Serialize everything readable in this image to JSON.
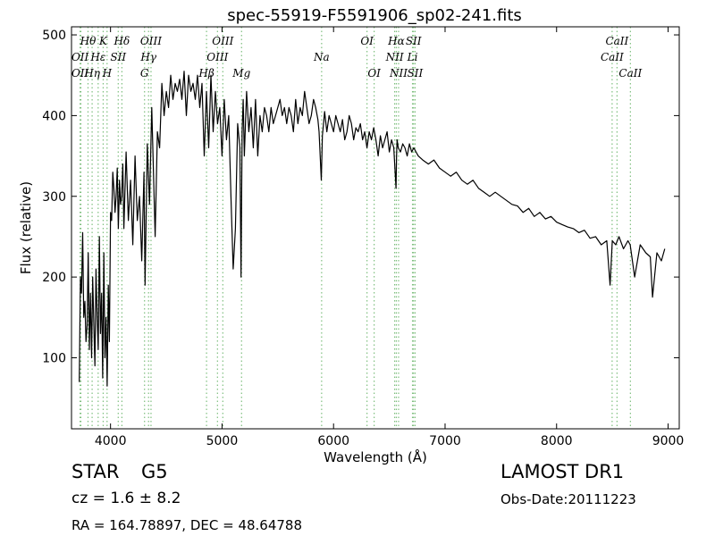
{
  "chart_data": {
    "type": "line",
    "title": "spec-55919-F5591906_sp02-241.fits",
    "xlabel": "Wavelength (Å)",
    "ylabel": "Flux (relative)",
    "xlim": [
      3650,
      9100
    ],
    "ylim": [
      12,
      510
    ],
    "xticks": [
      4000,
      5000,
      6000,
      7000,
      8000,
      9000
    ],
    "yticks": [
      100,
      200,
      300,
      400,
      500
    ],
    "grid": false,
    "line_color": "#000000",
    "marker_color": "#7fbf7f",
    "series": [
      {
        "x": [
          3720,
          3730,
          3740,
          3750,
          3760,
          3770,
          3780,
          3790,
          3800,
          3810,
          3820,
          3830,
          3840,
          3850,
          3860,
          3870,
          3880,
          3890,
          3900,
          3910,
          3920,
          3930,
          3940,
          3950,
          3960,
          3970,
          3980,
          3990,
          4000,
          4010,
          4020,
          4030,
          4040,
          4050,
          4060,
          4070,
          4080,
          4090,
          4100,
          4110,
          4120,
          4140,
          4160,
          4180,
          4200,
          4220,
          4240,
          4260,
          4280,
          4300,
          4310,
          4330,
          4350,
          4370,
          4400,
          4420,
          4440,
          4460,
          4480,
          4500,
          4520,
          4540,
          4560,
          4580,
          4600,
          4620,
          4640,
          4660,
          4680,
          4700,
          4720,
          4740,
          4760,
          4780,
          4800,
          4820,
          4840,
          4860,
          4880,
          4900,
          4920,
          4940,
          4960,
          4980,
          5000,
          5020,
          5040,
          5060,
          5080,
          5100,
          5120,
          5140,
          5160,
          5170,
          5180,
          5190,
          5200,
          5220,
          5240,
          5260,
          5280,
          5300,
          5320,
          5340,
          5360,
          5380,
          5400,
          5420,
          5440,
          5460,
          5480,
          5500,
          5520,
          5540,
          5560,
          5580,
          5600,
          5620,
          5640,
          5660,
          5680,
          5700,
          5720,
          5740,
          5760,
          5780,
          5800,
          5820,
          5840,
          5860,
          5870,
          5890,
          5900,
          5910,
          5920,
          5940,
          5960,
          5980,
          6000,
          6020,
          6040,
          6060,
          6080,
          6100,
          6120,
          6140,
          6160,
          6180,
          6200,
          6220,
          6240,
          6260,
          6280,
          6300,
          6320,
          6340,
          6360,
          6380,
          6400,
          6420,
          6440,
          6460,
          6480,
          6500,
          6520,
          6540,
          6560,
          6565,
          6570,
          6580,
          6600,
          6620,
          6640,
          6660,
          6680,
          6700,
          6720,
          6740,
          6760,
          6800,
          6850,
          6900,
          6950,
          7000,
          7050,
          7100,
          7150,
          7200,
          7250,
          7300,
          7350,
          7400,
          7450,
          7500,
          7550,
          7600,
          7650,
          7700,
          7750,
          7800,
          7850,
          7900,
          7950,
          8000,
          8050,
          8100,
          8150,
          8200,
          8250,
          8300,
          8350,
          8400,
          8450,
          8480,
          8500,
          8530,
          8560,
          8600,
          8640,
          8660,
          8700,
          8750,
          8800,
          8840,
          8860,
          8900,
          8940,
          8970
        ],
        "y": [
          70,
          200,
          180,
          255,
          150,
          170,
          120,
          140,
          230,
          110,
          180,
          100,
          200,
          140,
          90,
          210,
          150,
          110,
          250,
          130,
          180,
          75,
          230,
          100,
          150,
          65,
          190,
          120,
          280,
          270,
          330,
          310,
          280,
          300,
          335,
          260,
          320,
          290,
          300,
          340,
          260,
          355,
          270,
          320,
          240,
          350,
          270,
          300,
          220,
          330,
          190,
          365,
          290,
          410,
          250,
          380,
          360,
          440,
          400,
          430,
          410,
          450,
          420,
          440,
          430,
          445,
          420,
          455,
          400,
          450,
          430,
          440,
          420,
          450,
          410,
          440,
          350,
          430,
          360,
          450,
          380,
          430,
          390,
          410,
          350,
          420,
          370,
          400,
          300,
          210,
          260,
          390,
          360,
          200,
          380,
          420,
          350,
          430,
          380,
          410,
          360,
          420,
          350,
          400,
          380,
          410,
          400,
          380,
          410,
          390,
          400,
          410,
          420,
          400,
          410,
          390,
          410,
          400,
          380,
          420,
          390,
          410,
          400,
          430,
          410,
          390,
          400,
          420,
          410,
          395,
          380,
          320,
          375,
          390,
          405,
          380,
          400,
          390,
          380,
          400,
          390,
          380,
          395,
          370,
          380,
          400,
          390,
          370,
          385,
          380,
          390,
          370,
          380,
          360,
          380,
          370,
          385,
          370,
          350,
          375,
          360,
          370,
          380,
          355,
          370,
          360,
          310,
          350,
          370,
          360,
          355,
          365,
          360,
          350,
          365,
          355,
          360,
          355,
          350,
          345,
          340,
          345,
          335,
          330,
          325,
          330,
          320,
          315,
          320,
          310,
          305,
          300,
          305,
          300,
          295,
          290,
          288,
          280,
          285,
          275,
          280,
          272,
          275,
          268,
          265,
          262,
          260,
          255,
          258,
          248,
          250,
          240,
          245,
          190,
          245,
          240,
          250,
          235,
          245,
          240,
          200,
          240,
          230,
          225,
          175,
          230,
          220,
          235
        ]
      }
    ],
    "spectral_lines": [
      {
        "label": "Hθ",
        "x": 3798,
        "row": 0
      },
      {
        "label": "K",
        "x": 3934,
        "row": 0
      },
      {
        "label": "Hδ",
        "x": 4102,
        "row": 0
      },
      {
        "label": "OIII",
        "x": 4363,
        "row": 0
      },
      {
        "label": "OIII",
        "x": 5007,
        "row": 0
      },
      {
        "label": "OI",
        "x": 6300,
        "row": 0
      },
      {
        "label": "Hα",
        "x": 6563,
        "row": 0
      },
      {
        "label": "SII",
        "x": 6717,
        "row": 0
      },
      {
        "label": "CaII",
        "x": 8542,
        "row": 0
      },
      {
        "label": "OII",
        "x": 3727,
        "row": 1
      },
      {
        "label": "Hε",
        "x": 3889,
        "row": 1
      },
      {
        "label": "SII",
        "x": 4069,
        "row": 1
      },
      {
        "label": "Hγ",
        "x": 4341,
        "row": 1
      },
      {
        "label": "OIII",
        "x": 4959,
        "row": 1
      },
      {
        "label": "Na",
        "x": 5893,
        "row": 1
      },
      {
        "label": "NII",
        "x": 6548,
        "row": 1
      },
      {
        "label": "Li",
        "x": 6708,
        "row": 1
      },
      {
        "label": "CaII",
        "x": 8498,
        "row": 1
      },
      {
        "label": "OII",
        "x": 3727,
        "row": 2
      },
      {
        "label": "Hη",
        "x": 3835,
        "row": 2
      },
      {
        "label": "H",
        "x": 3969,
        "row": 2
      },
      {
        "label": "G",
        "x": 4305,
        "row": 2
      },
      {
        "label": "Hβ",
        "x": 4861,
        "row": 2
      },
      {
        "label": "Mg",
        "x": 5175,
        "row": 2
      },
      {
        "label": "OI",
        "x": 6364,
        "row": 2
      },
      {
        "label": "NII",
        "x": 6583,
        "row": 2
      },
      {
        "label": "SII",
        "x": 6731,
        "row": 2
      },
      {
        "label": "CaII",
        "x": 8662,
        "row": 2
      }
    ],
    "line_positions": [
      3727,
      3734,
      3798,
      3835,
      3889,
      3934,
      3969,
      4069,
      4102,
      4305,
      4341,
      4363,
      4861,
      4959,
      5007,
      5175,
      5893,
      6300,
      6364,
      6548,
      6563,
      6583,
      6708,
      6717,
      6731,
      8498,
      8542,
      8662
    ]
  },
  "info": {
    "object_class": "STAR",
    "subclass": "G5",
    "survey": "LAMOST DR1",
    "redshift": "cz = 1.6 ± 8.2",
    "obs_date": "Obs-Date:20111223",
    "coords": "RA = 164.78897, DEC = 48.64788"
  }
}
